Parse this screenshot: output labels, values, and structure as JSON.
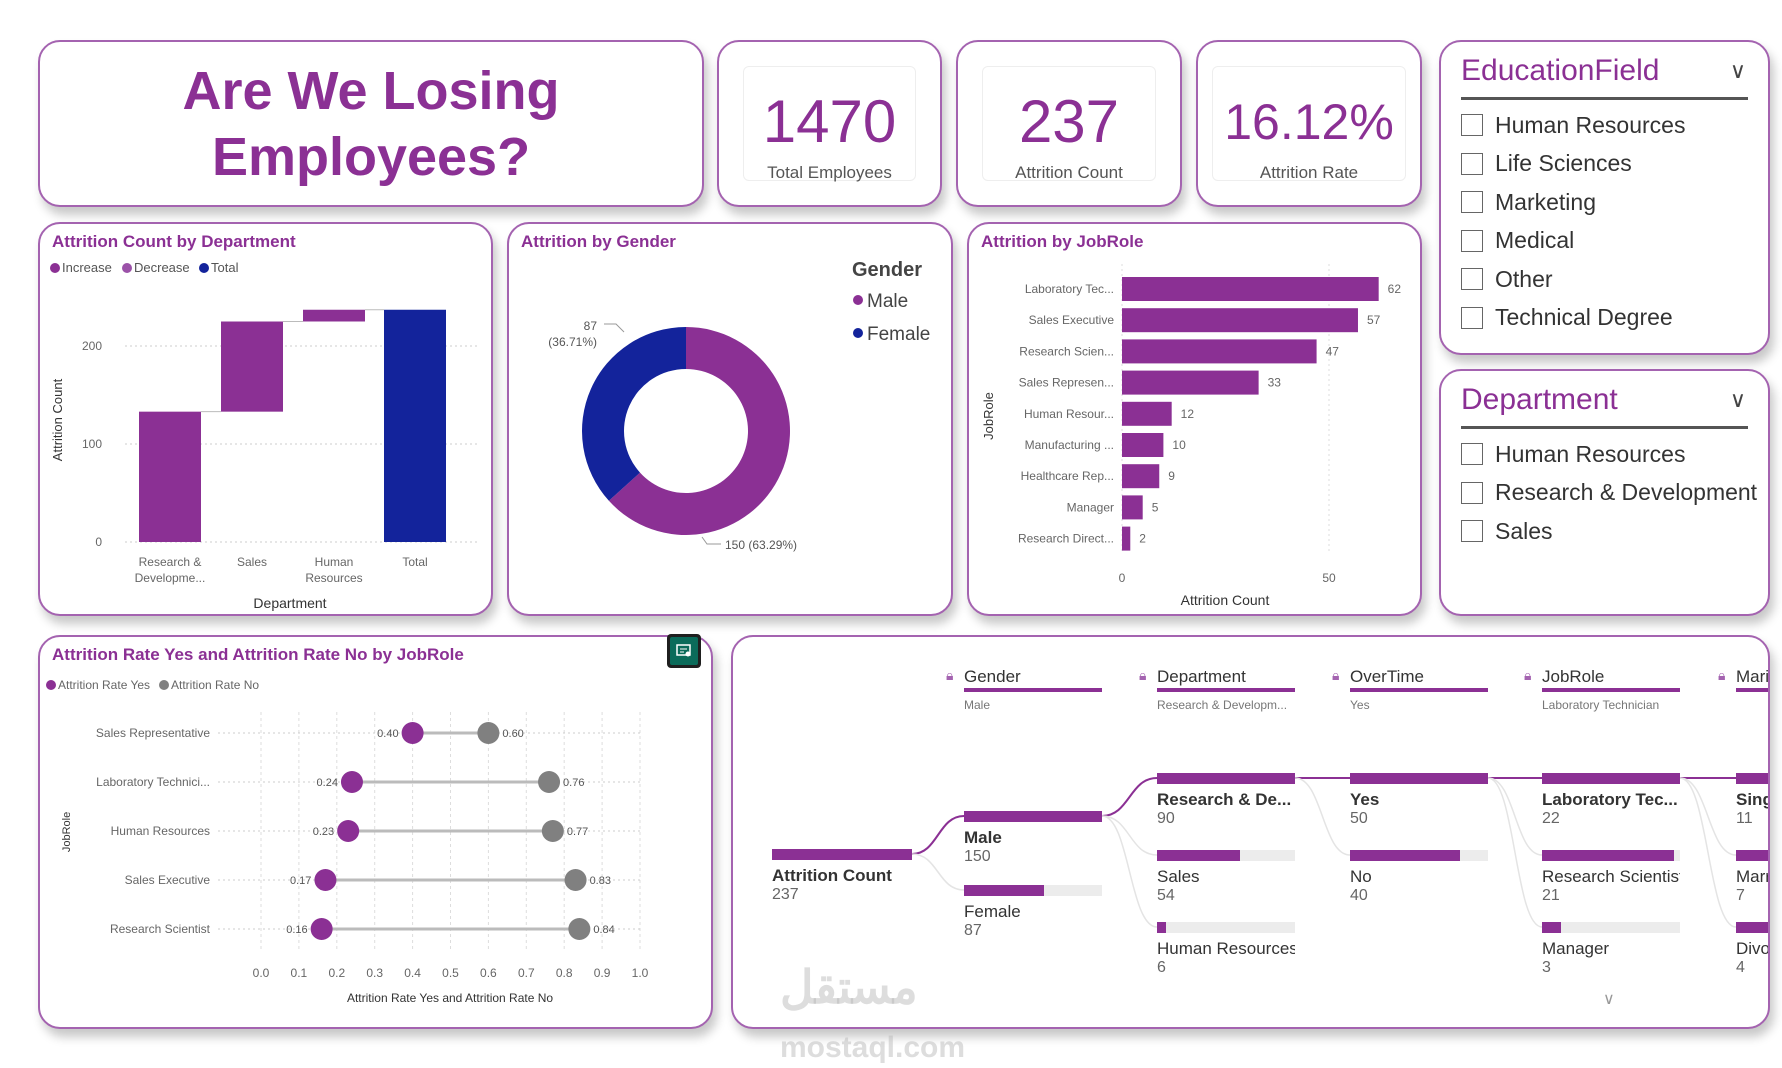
{
  "header": {
    "title": "Are We Losing Employees?"
  },
  "kpis": [
    {
      "value": "1470",
      "label": "Total Employees"
    },
    {
      "value": "237",
      "label": "Attrition Count"
    },
    {
      "value": "16.12%",
      "label": "Attrition Rate"
    }
  ],
  "slicers": {
    "education": {
      "title": "EducationField",
      "items": [
        "Human Resources",
        "Life Sciences",
        "Marketing",
        "Medical",
        "Other",
        "Technical Degree"
      ]
    },
    "department": {
      "title": "Department",
      "items": [
        "Human Resources",
        "Research & Development",
        "Sales"
      ]
    }
  },
  "colors": {
    "accent": "#8b3094",
    "total": "#13239b",
    "gray": "#808080"
  },
  "watermark": "مستقل mostaql.com",
  "insights_icon": "smart-narrative-icon",
  "chart_data": [
    {
      "type": "bar",
      "subtype": "waterfall",
      "title": "Attrition Count by Department",
      "legend": [
        "Increase",
        "Decrease",
        "Total"
      ],
      "legend_placement": "top-left",
      "categories": [
        "Research & Developme...",
        "Sales",
        "Human Resources",
        "Total"
      ],
      "values": [
        133,
        92,
        12,
        237
      ],
      "xlabel": "Department",
      "ylabel": "Attrition Count",
      "yticks": [
        0,
        100,
        200
      ],
      "ylim": [
        0,
        250
      ],
      "grid": true
    },
    {
      "type": "pie",
      "subtype": "donut",
      "title": "Attrition by Gender",
      "legend_title": "Gender",
      "legend_placement": "right",
      "slices": [
        {
          "name": "Male",
          "value": 150,
          "label": "150 (63.29%)"
        },
        {
          "name": "Female",
          "value": 87,
          "label": "87",
          "label2": "(36.71%)"
        }
      ]
    },
    {
      "type": "bar",
      "orientation": "horizontal",
      "title": "Attrition by JobRole",
      "xlabel": "Attrition Count",
      "ylabel": "JobRole",
      "categories": [
        "Laboratory Tec...",
        "Sales Executive",
        "Research Scien...",
        "Sales Represen...",
        "Human Resour...",
        "Manufacturing ...",
        "Healthcare Rep...",
        "Manager",
        "Research Direct..."
      ],
      "values": [
        62,
        57,
        47,
        33,
        12,
        10,
        9,
        5,
        2
      ],
      "xticks": [
        0,
        50
      ],
      "grid": true
    },
    {
      "type": "scatter",
      "subtype": "dumbbell",
      "title": "Attrition Rate Yes and Attrition Rate No by JobRole",
      "xlabel": "Attrition Rate Yes and Attrition Rate No",
      "ylabel": "JobRole",
      "legend_placement": "top-left",
      "categories": [
        "Sales Representative",
        "Laboratory Technici...",
        "Human Resources",
        "Sales Executive",
        "Research Scientist"
      ],
      "series": [
        {
          "name": "Attrition Rate Yes",
          "values": [
            0.4,
            0.24,
            0.23,
            0.17,
            0.16
          ],
          "labels": [
            "0.40",
            "0.24",
            "0.23",
            "0.17",
            "0.16"
          ]
        },
        {
          "name": "Attrition Rate No",
          "values": [
            0.6,
            0.76,
            0.77,
            0.83,
            0.84
          ],
          "labels": [
            "0.60",
            "0.76",
            "0.77",
            "0.83",
            "0.84"
          ]
        }
      ],
      "xticks": [
        "0.0",
        "0.1",
        "0.2",
        "0.3",
        "0.4",
        "0.5",
        "0.6",
        "0.7",
        "0.8",
        "0.9",
        "1.0"
      ],
      "xlim": [
        0,
        1
      ],
      "grid": true
    }
  ],
  "decomposition": {
    "root": {
      "label": "Attrition Count",
      "value": "237"
    },
    "columns": [
      {
        "header": "Gender",
        "selected": "Male",
        "nodes": [
          {
            "label": "Male",
            "value": 150
          },
          {
            "label": "Female",
            "value": 87
          }
        ]
      },
      {
        "header": "Department",
        "selected": "Research & Developm...",
        "nodes": [
          {
            "label": "Research & De...",
            "value": 90
          },
          {
            "label": "Sales",
            "value": 54
          },
          {
            "label": "Human Resources",
            "value": 6
          }
        ]
      },
      {
        "header": "OverTime",
        "selected": "Yes",
        "nodes": [
          {
            "label": "Yes",
            "value": 50
          },
          {
            "label": "No",
            "value": 40
          }
        ]
      },
      {
        "header": "JobRole",
        "selected": "Laboratory Technician",
        "nodes": [
          {
            "label": "Laboratory Tec...",
            "value": 22
          },
          {
            "label": "Research Scientist",
            "value": 21
          },
          {
            "label": "Manager",
            "value": 3
          }
        ]
      },
      {
        "header": "MaritalStatus",
        "selected": "",
        "nodes": [
          {
            "label": "Single",
            "value": 11
          },
          {
            "label": "Married",
            "value": 7
          },
          {
            "label": "Divorced",
            "value": 4
          }
        ]
      }
    ]
  }
}
